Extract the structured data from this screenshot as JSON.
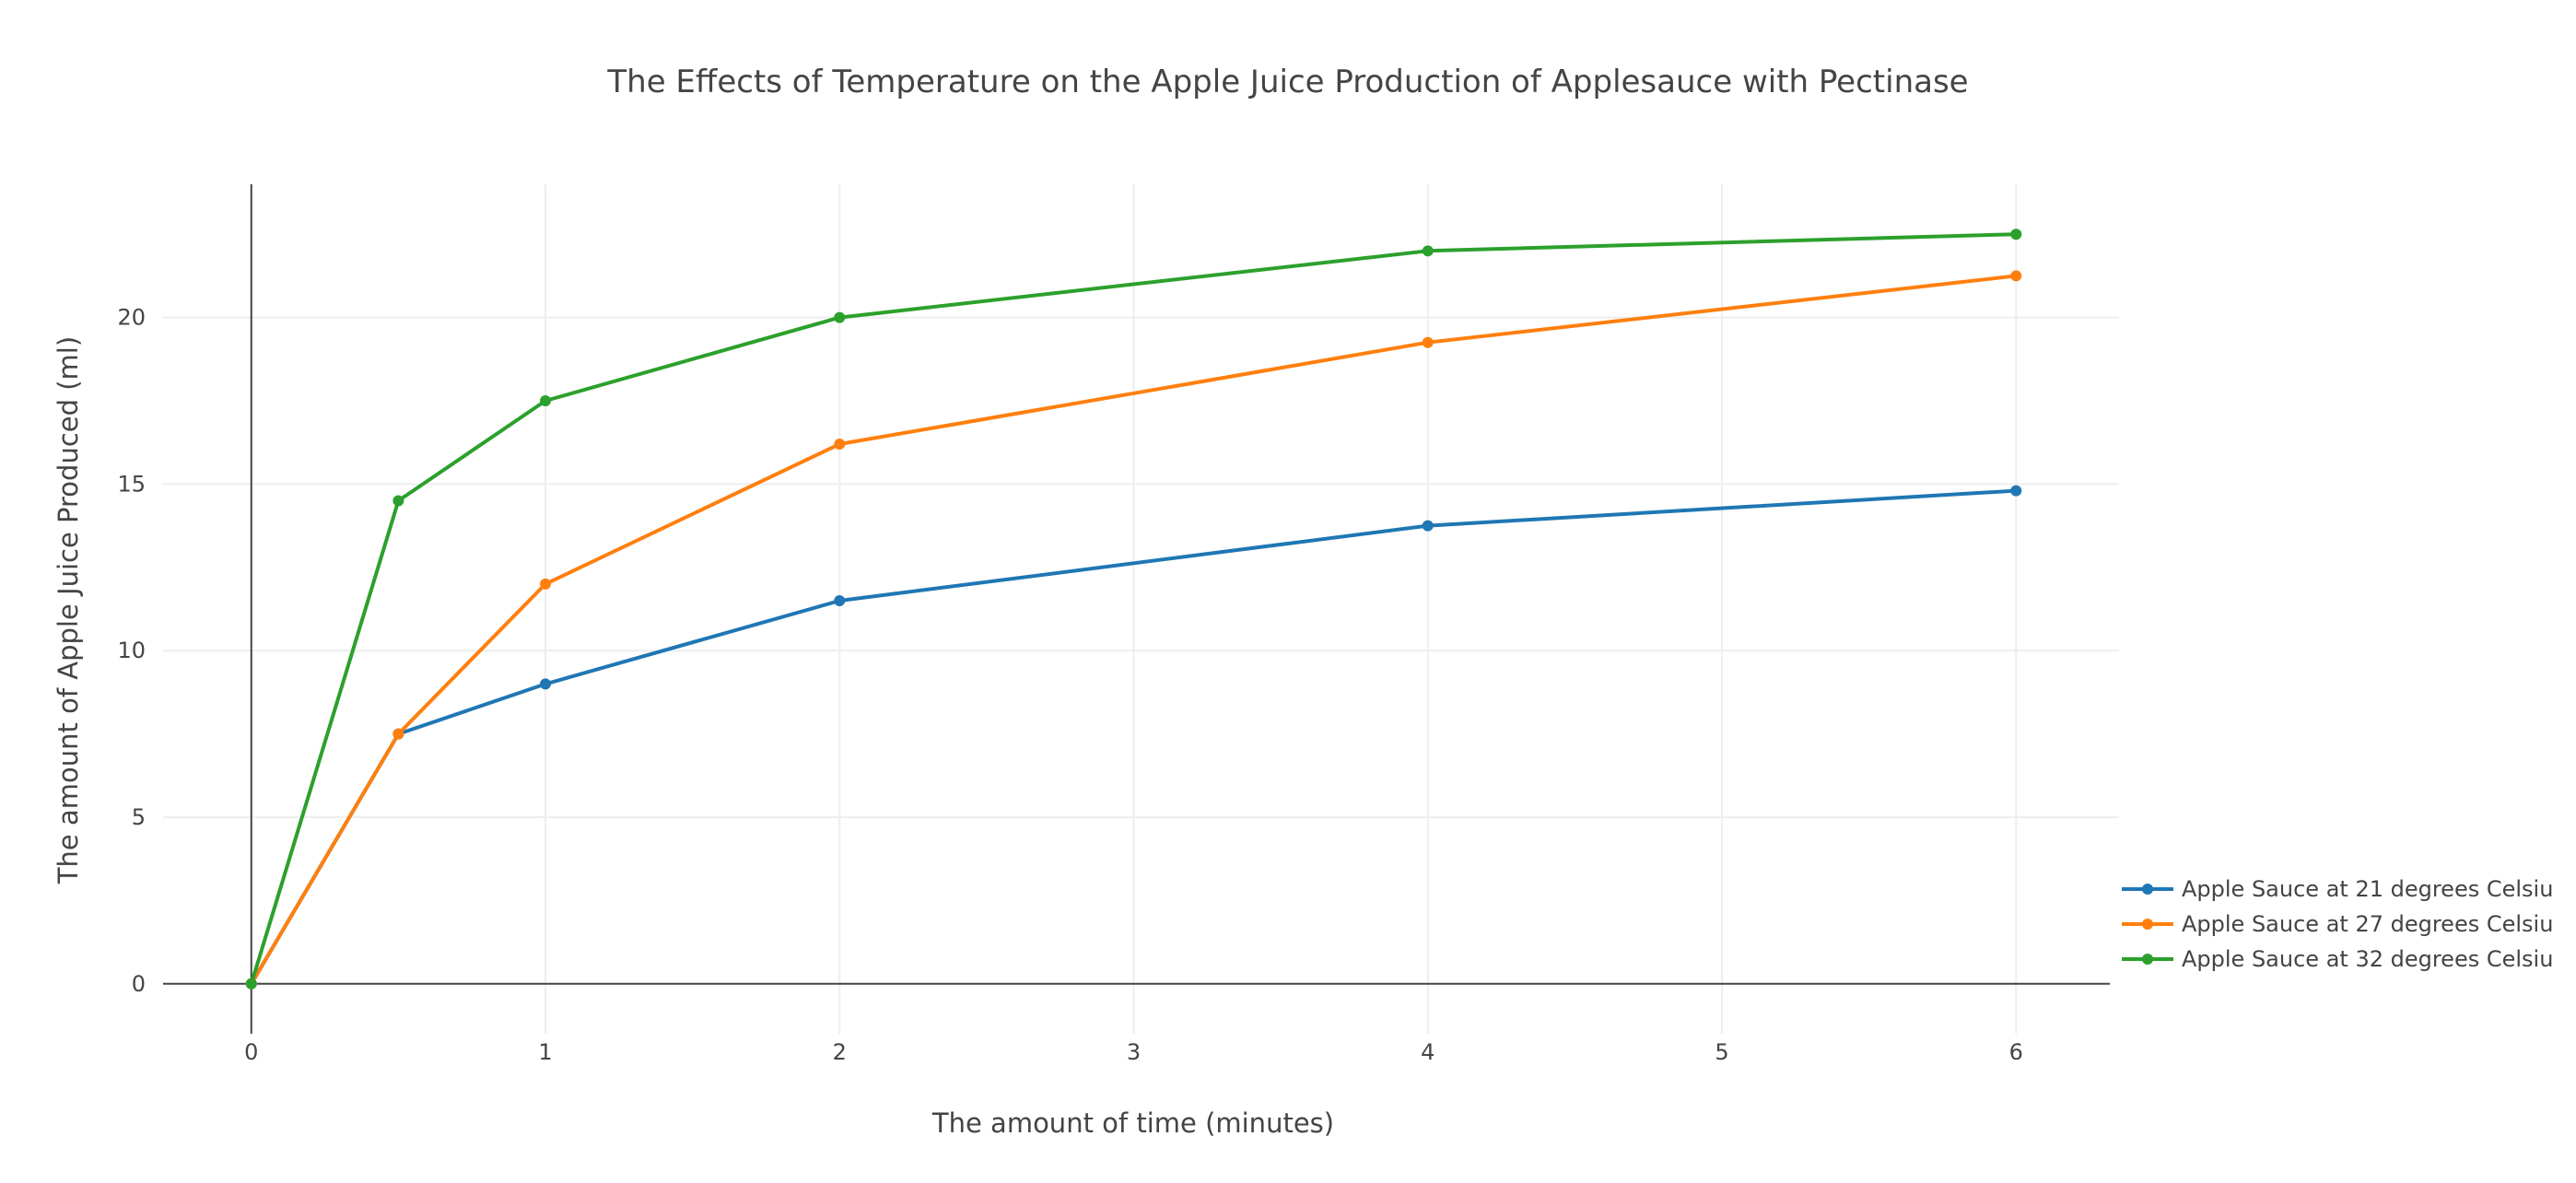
{
  "chart_data": {
    "type": "line",
    "title": "The Effects of Temperature on the Apple Juice Production of Applesauce with Pectinase",
    "xlabel": "The amount of time (minutes)",
    "ylabel": "The amount of Apple Juice Produced (ml)",
    "xlim": [
      -0.3,
      6.35
    ],
    "ylim": [
      -1.5,
      24
    ],
    "xticks": [
      "0",
      "1",
      "2",
      "3",
      "4",
      "5",
      "6"
    ],
    "yticks": [
      "0",
      "5",
      "10",
      "15",
      "20"
    ],
    "grid": true,
    "legend_position": "bottom-right",
    "x": [
      0,
      0.5,
      1,
      2,
      4,
      6
    ],
    "series": [
      {
        "name": "Apple Sauce at 21 degrees Celsiu",
        "color": "#1f77b4",
        "values": [
          0,
          7.5,
          9,
          11.5,
          13.75,
          14.8
        ]
      },
      {
        "name": "Apple Sauce at 27 degrees Celsiu",
        "color": "#ff7f0e",
        "values": [
          0,
          7.5,
          12,
          16.2,
          19.25,
          21.25
        ]
      },
      {
        "name": "Apple Sauce at 32 degrees Celsiu",
        "color": "#2ca02c",
        "values": [
          0,
          14.5,
          17.5,
          20,
          22,
          22.5
        ]
      }
    ]
  }
}
